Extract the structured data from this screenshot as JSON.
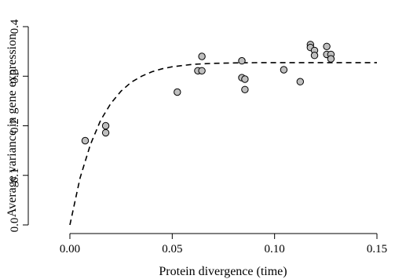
{
  "chart_data": {
    "type": "scatter",
    "title": "",
    "xlabel": "Protein divergence (time)",
    "ylabel": "Average variance in gene expression",
    "xlim": [
      0,
      0.15
    ],
    "ylim": [
      0,
      0.4
    ],
    "xticks": [
      0.0,
      0.05,
      0.1,
      0.15
    ],
    "xtick_labels": [
      "0.00",
      "0.05",
      "0.10",
      "0.15"
    ],
    "yticks": [
      0.0,
      0.1,
      0.2,
      0.3,
      0.4
    ],
    "ytick_labels": [
      "0.0",
      "0.1",
      "0.2",
      "0.3",
      "0.4"
    ],
    "grid": false,
    "point_color": "#bfbfbf",
    "series": [
      {
        "style": "points",
        "x": [
          0.0075,
          0.0175,
          0.0175,
          0.0525,
          0.0625,
          0.0645,
          0.0645,
          0.084,
          0.084,
          0.0855,
          0.0855,
          0.1045,
          0.1125,
          0.1175,
          0.1175,
          0.1195,
          0.1195,
          0.1255,
          0.1255,
          0.1275,
          0.1275
        ],
        "y": [
          0.17,
          0.2,
          0.186,
          0.268,
          0.311,
          0.311,
          0.34,
          0.331,
          0.297,
          0.294,
          0.273,
          0.313,
          0.289,
          0.364,
          0.358,
          0.352,
          0.342,
          0.36,
          0.344,
          0.344,
          0.335
        ]
      },
      {
        "style": "dashed-fit",
        "x": [
          0.0,
          0.005,
          0.01,
          0.015,
          0.02,
          0.025,
          0.03,
          0.035,
          0.04,
          0.045,
          0.05,
          0.06,
          0.07,
          0.08,
          0.09,
          0.1,
          0.12,
          0.15
        ],
        "y": [
          0.0,
          0.095,
          0.162,
          0.211,
          0.245,
          0.27,
          0.288,
          0.3,
          0.309,
          0.315,
          0.319,
          0.324,
          0.326,
          0.3268,
          0.3272,
          0.3274,
          0.3275,
          0.3275
        ]
      }
    ]
  }
}
